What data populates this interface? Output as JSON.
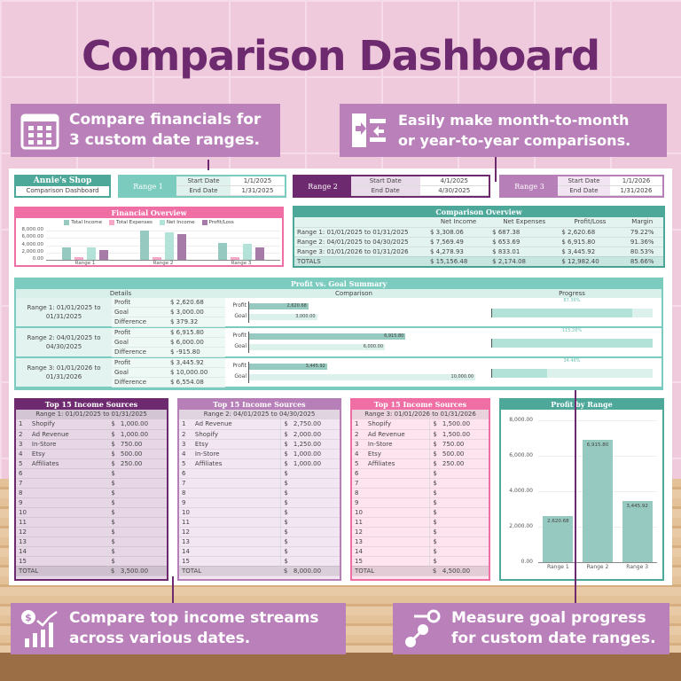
{
  "title": "Comparison Dashboard",
  "callouts": [
    {
      "icon": "calendar-icon",
      "lines": [
        "Compare financials for",
        "3 custom date ranges."
      ]
    },
    {
      "icon": "compare-arrows-icon",
      "lines": [
        "Easily make month-to-month",
        "or year-to-year comparisons."
      ]
    },
    {
      "icon": "income-growth-icon",
      "lines": [
        "Compare top income streams",
        "across various dates."
      ]
    },
    {
      "icon": "goal-target-icon",
      "lines": [
        "Measure goal progress",
        "for custom date ranges."
      ]
    }
  ],
  "colors": {
    "teal": "#4ea89a",
    "teal_light": "#7ccbbf",
    "pink": "#ef6ea4",
    "purple_dark": "#6e2a6e",
    "purple_mid": "#b77fb8",
    "bar_teal": "#96c9bf",
    "bar_pink": "#f7a8c8",
    "bar_mint": "#b2e2d8",
    "bar_purple": "#a77ba8"
  },
  "shop": {
    "name": "Annie's Shop",
    "subtitle": "Comparison Dashboard"
  },
  "ranges": [
    {
      "label": "Range 1",
      "start_label": "Start Date",
      "start": "1/1/2025",
      "end_label": "End Date",
      "end": "1/31/2025"
    },
    {
      "label": "Range 2",
      "start_label": "Start Date",
      "start": "4/1/2025",
      "end_label": "End Date",
      "end": "4/30/2025"
    },
    {
      "label": "Range 3",
      "start_label": "Start Date",
      "start": "1/1/2026",
      "end_label": "End Date",
      "end": "1/31/2026"
    }
  ],
  "comparison_overview": {
    "title": "Comparison Overview",
    "headers": [
      "",
      "Net Income",
      "Net Expenses",
      "Profit/Loss",
      "Margin"
    ],
    "rows": [
      [
        "Range 1: 01/01/2025 to 01/31/2025",
        "$  3,308.06",
        "$  687.38",
        "$  2,620.68",
        "79.22%"
      ],
      [
        "Range 2: 04/01/2025 to 04/30/2025",
        "$  7,569.49",
        "$  653.69",
        "$  6,915.80",
        "91.36%"
      ],
      [
        "Range 3: 01/01/2026 to 01/31/2026",
        "$  4,278.93",
        "$  833.01",
        "$  3,445.92",
        "80.53%"
      ],
      [
        "TOTALS",
        "$  15,156.48",
        "$  2,174.08",
        "$  12,982.40",
        "85.66%"
      ]
    ]
  },
  "profit_goal": {
    "title": "Profit vs. Goal Summary",
    "col_details": "Details",
    "col_comparison": "Comparison",
    "col_progress": "Progress",
    "groups": [
      {
        "range": "Range 1: 01/01/2025 to 01/31/2025",
        "rows": [
          [
            "Profit",
            "$  2,620.68"
          ],
          [
            "Goal",
            "$  3,000.00"
          ],
          [
            "Difference",
            "$  379.32"
          ]
        ],
        "profit": 2620.68,
        "goal": 3000,
        "profit_label": "2,620.68",
        "goal_label": "3,000.00",
        "progress": 87.36,
        "progress_label": "87.36%"
      },
      {
        "range": "Range 2: 04/01/2025 to 04/30/2025",
        "rows": [
          [
            "Profit",
            "$  6,915.80"
          ],
          [
            "Goal",
            "$  6,000.00"
          ],
          [
            "Difference",
            "$  -915.80"
          ]
        ],
        "profit": 6915.8,
        "goal": 6000,
        "profit_label": "6,915.80",
        "goal_label": "6,000.00",
        "progress": 115.26,
        "progress_label": "115.26%"
      },
      {
        "range": "Range 3: 01/01/2026 to 01/31/2026",
        "rows": [
          [
            "Profit",
            "$  3,445.92"
          ],
          [
            "Goal",
            "$  10,000.00"
          ],
          [
            "Difference",
            "$  6,554.08"
          ]
        ],
        "profit": 3445.92,
        "goal": 10000,
        "profit_label": "3,445.92",
        "goal_label": "10,000.00",
        "progress": 34.46,
        "progress_label": "34.46%"
      }
    ],
    "bar_labels": [
      "Profit",
      "Goal"
    ]
  },
  "income_tables": [
    {
      "title": "Top 15 Income Sources",
      "range": "Range 1: 01/01/2025 to 01/31/2025",
      "rows": [
        [
          "1",
          "Shopify",
          "$",
          "1,000.00"
        ],
        [
          "2",
          "Ad Revenue",
          "$",
          "1,000.00"
        ],
        [
          "3",
          "In-Store",
          "$",
          "750.00"
        ],
        [
          "4",
          "Etsy",
          "$",
          "500.00"
        ],
        [
          "5",
          "Affiliates",
          "$",
          "250.00"
        ],
        [
          "6",
          "",
          "$",
          ""
        ],
        [
          "7",
          "",
          "$",
          ""
        ],
        [
          "8",
          "",
          "$",
          ""
        ],
        [
          "9",
          "",
          "$",
          ""
        ],
        [
          "10",
          "",
          "$",
          ""
        ],
        [
          "11",
          "",
          "$",
          ""
        ],
        [
          "12",
          "",
          "$",
          ""
        ],
        [
          "13",
          "",
          "$",
          ""
        ],
        [
          "14",
          "",
          "$",
          ""
        ],
        [
          "15",
          "",
          "$",
          ""
        ]
      ],
      "total_label": "TOTAL",
      "total": "3,500.00"
    },
    {
      "title": "Top 15 Income Sources",
      "range": "Range 2: 04/01/2025 to 04/30/2025",
      "rows": [
        [
          "1",
          "Ad Revenue",
          "$",
          "2,750.00"
        ],
        [
          "2",
          "Shopify",
          "$",
          "2,000.00"
        ],
        [
          "3",
          "Etsy",
          "$",
          "1,250.00"
        ],
        [
          "4",
          "In-Store",
          "$",
          "1,000.00"
        ],
        [
          "5",
          "Affiliates",
          "$",
          "1,000.00"
        ],
        [
          "6",
          "",
          "$",
          ""
        ],
        [
          "7",
          "",
          "$",
          ""
        ],
        [
          "8",
          "",
          "$",
          ""
        ],
        [
          "9",
          "",
          "$",
          ""
        ],
        [
          "10",
          "",
          "$",
          ""
        ],
        [
          "11",
          "",
          "$",
          ""
        ],
        [
          "12",
          "",
          "$",
          ""
        ],
        [
          "13",
          "",
          "$",
          ""
        ],
        [
          "14",
          "",
          "$",
          ""
        ],
        [
          "15",
          "",
          "$",
          ""
        ]
      ],
      "total_label": "TOTAL",
      "total": "8,000.00"
    },
    {
      "title": "Top 15 Income Sources",
      "range": "Range 3: 01/01/2026 to 01/31/2026",
      "rows": [
        [
          "1",
          "Shopify",
          "$",
          "1,500.00"
        ],
        [
          "2",
          "Ad Revenue",
          "$",
          "1,500.00"
        ],
        [
          "3",
          "In-Store",
          "$",
          "750.00"
        ],
        [
          "4",
          "Etsy",
          "$",
          "500.00"
        ],
        [
          "5",
          "Affiliates",
          "$",
          "250.00"
        ],
        [
          "6",
          "",
          "$",
          ""
        ],
        [
          "7",
          "",
          "$",
          ""
        ],
        [
          "8",
          "",
          "$",
          ""
        ],
        [
          "9",
          "",
          "$",
          ""
        ],
        [
          "10",
          "",
          "$",
          ""
        ],
        [
          "11",
          "",
          "$",
          ""
        ],
        [
          "12",
          "",
          "$",
          ""
        ],
        [
          "13",
          "",
          "$",
          ""
        ],
        [
          "14",
          "",
          "$",
          ""
        ],
        [
          "15",
          "",
          "$",
          ""
        ]
      ],
      "total_label": "TOTAL",
      "total": "4,500.00"
    }
  ],
  "chart_data": [
    {
      "type": "bar",
      "title": "Financial Overview",
      "categories": [
        "Range 1",
        "Range 2",
        "Range 3"
      ],
      "series": [
        {
          "name": "Total Income",
          "values": [
            3500,
            8000,
            4500
          ]
        },
        {
          "name": "Total Expenses",
          "values": [
            687.38,
            653.69,
            833.01
          ]
        },
        {
          "name": "Net Income",
          "values": [
            3308.06,
            7569.49,
            4278.93
          ]
        },
        {
          "name": "Profit/Loss",
          "values": [
            2620.68,
            6915.8,
            3445.92
          ]
        }
      ],
      "yticks": [
        "8,000.00",
        "6,000.00",
        "4,000.00",
        "2,000.00",
        "0.00"
      ],
      "ylim": [
        0,
        8000
      ],
      "legend": "top",
      "grid": true
    },
    {
      "type": "bar",
      "title": "Profit by Range",
      "categories": [
        "Range 1",
        "Range 2",
        "Range 3"
      ],
      "values": [
        2620.68,
        6915.8,
        3445.92
      ],
      "labels": [
        "2,620.68",
        "6,915.80",
        "3,445.92"
      ],
      "yticks": [
        "8,000.00",
        "6,000.00",
        "4,000.00",
        "2,000.00",
        "0.00"
      ],
      "ylim": [
        0,
        8000
      ],
      "grid": true
    }
  ]
}
